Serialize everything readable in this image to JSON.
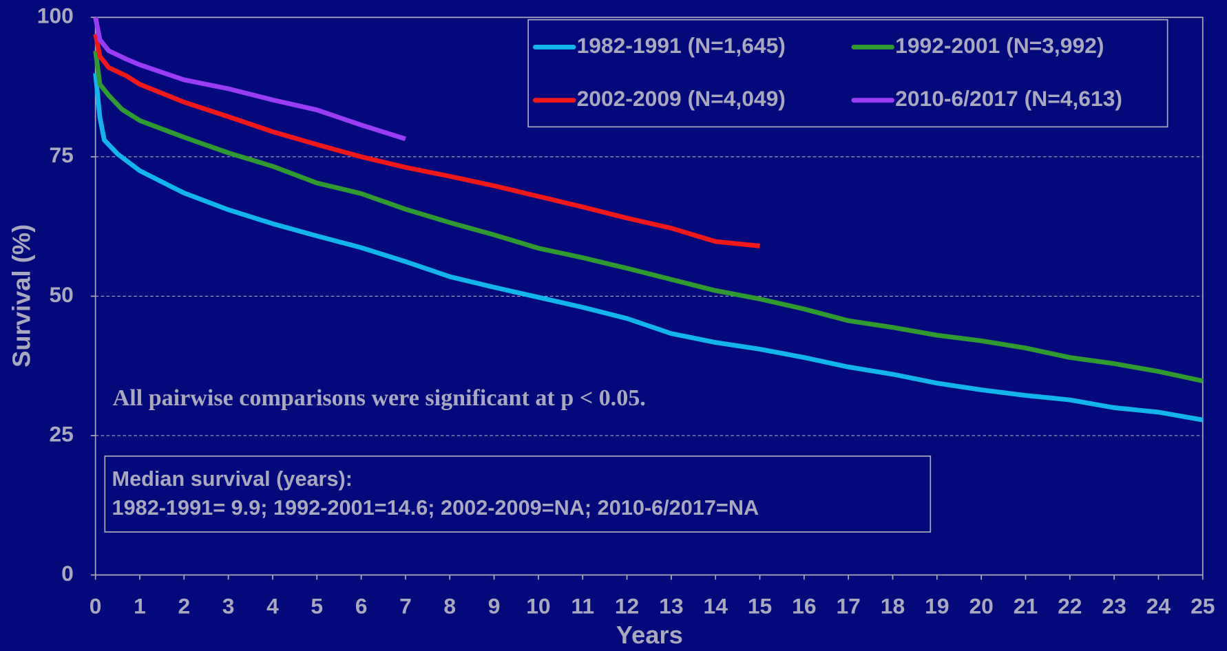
{
  "chart_data": {
    "type": "line",
    "xlabel": "Years",
    "ylabel": "Survival (%)",
    "xlim": [
      0,
      25
    ],
    "ylim": [
      0,
      100
    ],
    "xticks": [
      0,
      1,
      2,
      3,
      4,
      5,
      6,
      7,
      8,
      9,
      10,
      11,
      12,
      13,
      14,
      15,
      16,
      17,
      18,
      19,
      20,
      21,
      22,
      23,
      24,
      25
    ],
    "yticks": [
      0,
      25,
      50,
      75,
      100
    ],
    "grid": true,
    "legend": "upper right",
    "annotations": [
      "All pairwise comparisons were significant at p < 0.05.",
      "Median survival (years):",
      "1982-1991= 9.9; 1992-2001=14.6; 2002-2009=NA; 2010-6/2017=NA"
    ],
    "series": [
      {
        "name": "1982-1991 (N=1,645)",
        "color": "#12b4ee",
        "x": [
          0,
          0.1,
          0.2,
          0.5,
          1,
          2,
          3,
          4,
          5,
          6,
          7,
          8,
          9,
          10,
          11,
          12,
          13,
          14,
          15,
          16,
          17,
          18,
          19,
          20,
          21,
          22,
          23,
          24,
          25
        ],
        "values": [
          90,
          82,
          78,
          75.5,
          72.5,
          68.5,
          65.5,
          63,
          60.8,
          58.7,
          56.2,
          53.5,
          51.6,
          49.8,
          48,
          46,
          43.3,
          41.7,
          40.5,
          39,
          37.3,
          36,
          34.4,
          33.2,
          32.2,
          31.4,
          30,
          29.2,
          27.8
        ]
      },
      {
        "name": "1992-2001 (N=3,992)",
        "color": "#2f9a2f",
        "x": [
          0,
          0.1,
          0.3,
          0.6,
          1,
          2,
          3,
          4,
          5,
          6,
          7,
          8,
          9,
          10,
          11,
          12,
          13,
          14,
          15,
          16,
          17,
          18,
          19,
          20,
          21,
          22,
          23,
          24,
          25
        ],
        "values": [
          94,
          88,
          86,
          83.5,
          81.5,
          78.5,
          75.7,
          73.3,
          70.3,
          68.4,
          65.6,
          63.2,
          61,
          58.6,
          56.9,
          55,
          53,
          51,
          49.5,
          47.7,
          45.6,
          44.4,
          43,
          42,
          40.7,
          39,
          37.9,
          36.5,
          34.8
        ]
      },
      {
        "name": "2002-2009 (N=4,049)",
        "color": "#f01818",
        "x": [
          0,
          0.1,
          0.3,
          0.7,
          1,
          2,
          3,
          4,
          5,
          6,
          7,
          8,
          9,
          10,
          11,
          12,
          13,
          14,
          15
        ],
        "values": [
          97,
          93,
          91,
          89.5,
          88,
          84.8,
          82.2,
          79.5,
          77.2,
          75,
          73.1,
          71.5,
          69.8,
          67.9,
          66,
          64,
          62.2,
          59.8,
          59
        ]
      },
      {
        "name": "2010-6/2017 (N=4,613)",
        "color": "#9b3cf5",
        "x": [
          0,
          0.1,
          0.3,
          0.7,
          1,
          2,
          3,
          4,
          5,
          6,
          7
        ],
        "values": [
          100,
          96,
          94,
          92.5,
          91.5,
          88.8,
          87.2,
          85.2,
          83.4,
          80.7,
          78.2
        ]
      }
    ]
  }
}
